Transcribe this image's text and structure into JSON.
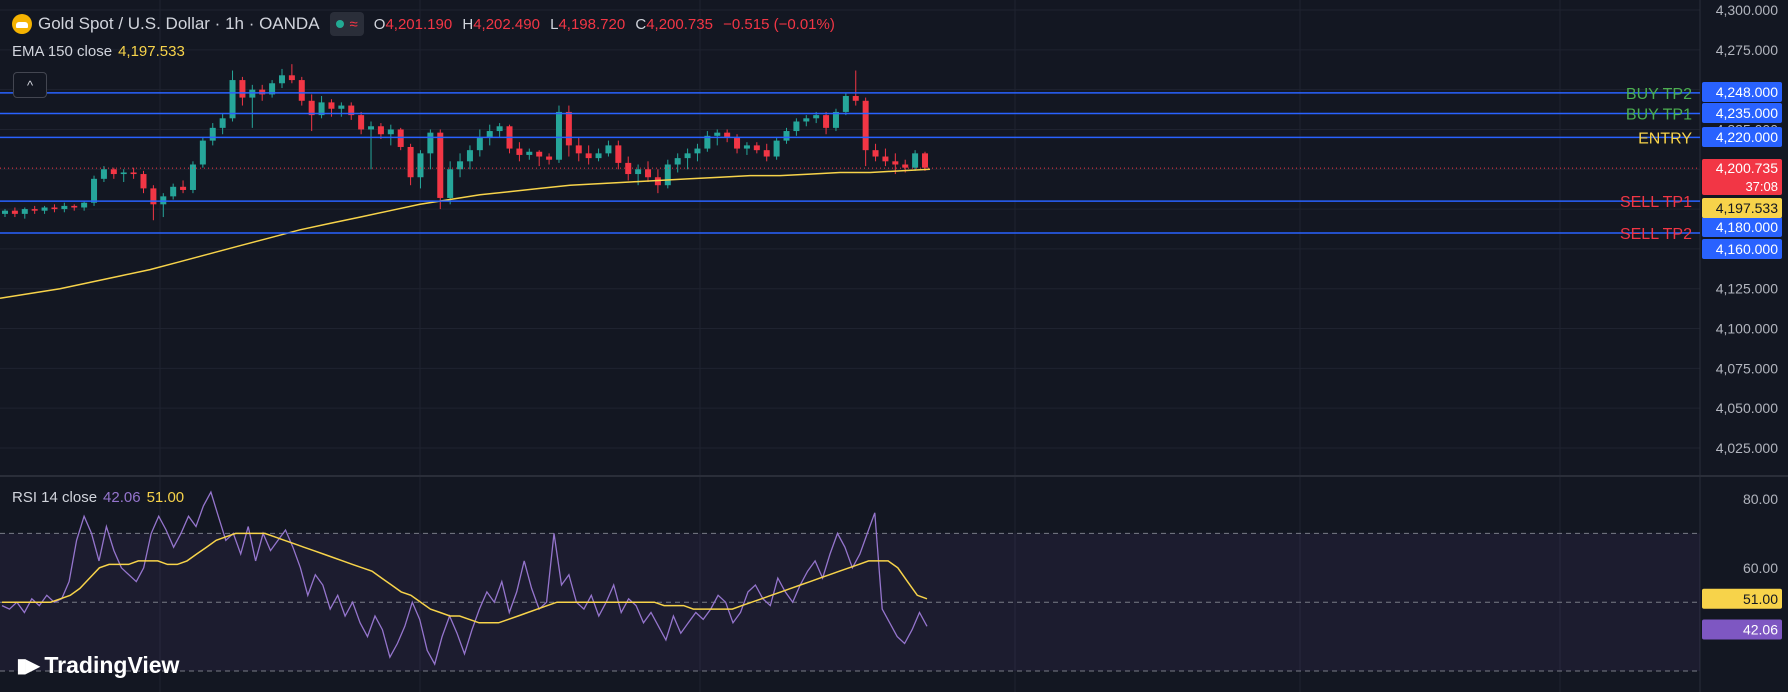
{
  "header": {
    "symbol_title": "Gold Spot / U.S. Dollar · 1h · OANDA",
    "approx_icon": "≈",
    "ohlc": {
      "o_label": "O",
      "o": "4,201.190",
      "h_label": "H",
      "h": "4,202.490",
      "l_label": "L",
      "l": "4,198.720",
      "c_label": "C",
      "c": "4,200.735",
      "change": "−0.515 (−0.01%)"
    }
  },
  "ema_legend": {
    "label": "EMA 150 close",
    "value": "4,197.533"
  },
  "collapse_icon": "^",
  "rsi_legend": {
    "label": "RSI 14 close",
    "value": "42.06",
    "ma_value": "51.00"
  },
  "branding": {
    "logo_text": "TradingView"
  },
  "colors": {
    "background": "#131722",
    "grid": "#1f2330",
    "up": "#26a69a",
    "down": "#f23645",
    "ema": "#f7d34a",
    "level_line": "#2962ff",
    "rsi": "#9575cd",
    "rsi_ma": "#f7d34a"
  },
  "chart_data": [
    {
      "type": "candlestick",
      "price_axis_ticks": [
        "4,300.000",
        "4,275.000",
        "4,250.000",
        "4,225.000",
        "4,200.000",
        "4,175.000",
        "4,150.000",
        "4,125.000",
        "4,100.000",
        "4,075.000",
        "4,050.000",
        "4,025.000"
      ],
      "ylim": [
        4015,
        4300
      ],
      "levels": [
        {
          "name": "BUY TP2",
          "price": 4248,
          "price_label": "4,248.000",
          "text_color": "#4caf50"
        },
        {
          "name": "BUY TP1",
          "price": 4235,
          "price_label": "4,235.000",
          "text_color": "#4caf50"
        },
        {
          "name": "ENTRY",
          "price": 4220,
          "price_label": "4,220.000",
          "text_color": "#f7d34a"
        },
        {
          "name": "SELL TP1",
          "price": 4180,
          "price_label": "4,180.000",
          "text_color": "#f23645"
        },
        {
          "name": "SELL TP2",
          "price": 4160,
          "price_label": "4,160.000",
          "text_color": "#f23645"
        }
      ],
      "current_price": {
        "price": 4200.735,
        "label": "4,200.735",
        "countdown": "37:08"
      },
      "ema_tag": {
        "price": 4197.533,
        "label": "4,197.533"
      },
      "ohlc": [
        [
          4172,
          4175,
          4170,
          4174
        ],
        [
          4174,
          4176,
          4170,
          4172
        ],
        [
          4172,
          4176,
          4169,
          4175
        ],
        [
          4175,
          4177,
          4172,
          4174
        ],
        [
          4174,
          4177,
          4172,
          4176
        ],
        [
          4176,
          4178,
          4173,
          4175
        ],
        [
          4175,
          4179,
          4173,
          4177
        ],
        [
          4177,
          4178,
          4174,
          4176
        ],
        [
          4176,
          4180,
          4174,
          4179
        ],
        [
          4179,
          4196,
          4177,
          4194
        ],
        [
          4194,
          4202,
          4192,
          4200
        ],
        [
          4200,
          4201,
          4194,
          4197
        ],
        [
          4197,
          4200,
          4192,
          4198
        ],
        [
          4198,
          4201,
          4194,
          4197
        ],
        [
          4197,
          4199,
          4185,
          4188
        ],
        [
          4188,
          4190,
          4168,
          4178
        ],
        [
          4178,
          4185,
          4170,
          4183
        ],
        [
          4183,
          4191,
          4181,
          4189
        ],
        [
          4189,
          4193,
          4185,
          4187
        ],
        [
          4187,
          4205,
          4185,
          4203
        ],
        [
          4203,
          4220,
          4201,
          4218
        ],
        [
          4218,
          4229,
          4215,
          4226
        ],
        [
          4226,
          4235,
          4222,
          4232
        ],
        [
          4232,
          4262,
          4230,
          4256
        ],
        [
          4256,
          4258,
          4240,
          4245
        ],
        [
          4245,
          4253,
          4226,
          4250
        ],
        [
          4250,
          4253,
          4243,
          4247
        ],
        [
          4247,
          4256,
          4245,
          4254
        ],
        [
          4254,
          4263,
          4251,
          4259
        ],
        [
          4259,
          4266,
          4254,
          4256
        ],
        [
          4256,
          4258,
          4240,
          4243
        ],
        [
          4243,
          4247,
          4224,
          4234
        ],
        [
          4234,
          4246,
          4232,
          4242
        ],
        [
          4242,
          4244,
          4233,
          4238
        ],
        [
          4238,
          4242,
          4233,
          4240
        ],
        [
          4240,
          4242,
          4231,
          4234
        ],
        [
          4234,
          4236,
          4222,
          4225
        ],
        [
          4225,
          4230,
          4200,
          4227
        ],
        [
          4227,
          4229,
          4219,
          4222
        ],
        [
          4222,
          4228,
          4215,
          4225
        ],
        [
          4225,
          4226,
          4212,
          4214
        ],
        [
          4214,
          4216,
          4190,
          4195
        ],
        [
          4195,
          4212,
          4188,
          4210
        ],
        [
          4210,
          4225,
          4200,
          4223
        ],
        [
          4223,
          4225,
          4175,
          4182
        ],
        [
          4182,
          4205,
          4178,
          4200
        ],
        [
          4200,
          4210,
          4195,
          4205
        ],
        [
          4205,
          4215,
          4200,
          4212
        ],
        [
          4212,
          4225,
          4208,
          4220
        ],
        [
          4220,
          4228,
          4215,
          4224
        ],
        [
          4224,
          4229,
          4220,
          4227
        ],
        [
          4227,
          4228,
          4210,
          4213
        ],
        [
          4213,
          4217,
          4205,
          4209
        ],
        [
          4209,
          4213,
          4206,
          4211
        ],
        [
          4211,
          4212,
          4202,
          4208
        ],
        [
          4208,
          4210,
          4203,
          4206
        ],
        [
          4206,
          4240,
          4204,
          4236
        ],
        [
          4236,
          4240,
          4208,
          4215
        ],
        [
          4215,
          4220,
          4205,
          4210
        ],
        [
          4210,
          4215,
          4203,
          4207
        ],
        [
          4207,
          4213,
          4205,
          4210
        ],
        [
          4210,
          4218,
          4208,
          4215
        ],
        [
          4215,
          4218,
          4200,
          4204
        ],
        [
          4204,
          4208,
          4193,
          4197
        ],
        [
          4197,
          4203,
          4190,
          4200
        ],
        [
          4200,
          4205,
          4192,
          4195
        ],
        [
          4195,
          4200,
          4185,
          4190
        ],
        [
          4190,
          4206,
          4188,
          4203
        ],
        [
          4203,
          4210,
          4198,
          4207
        ],
        [
          4207,
          4213,
          4200,
          4210
        ],
        [
          4210,
          4216,
          4205,
          4213
        ],
        [
          4213,
          4224,
          4211,
          4221
        ],
        [
          4221,
          4225,
          4215,
          4223
        ],
        [
          4223,
          4225,
          4217,
          4220
        ],
        [
          4220,
          4222,
          4210,
          4213
        ],
        [
          4213,
          4217,
          4209,
          4215
        ],
        [
          4215,
          4217,
          4210,
          4212
        ],
        [
          4212,
          4216,
          4205,
          4208
        ],
        [
          4208,
          4220,
          4206,
          4218
        ],
        [
          4218,
          4226,
          4216,
          4224
        ],
        [
          4224,
          4232,
          4221,
          4230
        ],
        [
          4230,
          4234,
          4227,
          4232
        ],
        [
          4232,
          4236,
          4229,
          4234
        ],
        [
          4234,
          4236,
          4222,
          4226
        ],
        [
          4226,
          4238,
          4224,
          4236
        ],
        [
          4236,
          4248,
          4234,
          4246
        ],
        [
          4246,
          4262,
          4240,
          4243
        ],
        [
          4243,
          4245,
          4202,
          4212
        ],
        [
          4212,
          4216,
          4205,
          4208
        ],
        [
          4208,
          4213,
          4202,
          4205
        ],
        [
          4205,
          4210,
          4197,
          4203
        ],
        [
          4203,
          4206,
          4198,
          4201
        ],
        [
          4201,
          4212,
          4199,
          4210
        ],
        [
          4210,
          4211,
          4199,
          4201
        ]
      ],
      "ema": [
        4119,
        4122,
        4125,
        4129,
        4133,
        4137,
        4142,
        4147,
        4152,
        4157,
        4162,
        4166,
        4170,
        4174,
        4178,
        4181,
        4184,
        4186,
        4188,
        4190,
        4191,
        4192,
        4193,
        4194,
        4195,
        4196,
        4196,
        4197,
        4198,
        4198,
        4199,
        4200
      ]
    },
    {
      "type": "line",
      "name": "RSI 14 close",
      "axis_ticks": [
        "80.00",
        "60.00"
      ],
      "ylim": [
        30,
        85
      ],
      "levels": [
        70,
        50,
        30
      ],
      "tags": [
        {
          "value": 51.0,
          "label": "51.00",
          "color": "#f7d34a"
        },
        {
          "value": 42.06,
          "label": "42.06",
          "color": "#7e57c2"
        }
      ],
      "rsi": [
        49,
        48,
        50,
        47,
        51,
        49,
        52,
        50,
        51,
        56,
        68,
        75,
        70,
        62,
        72,
        65,
        60,
        58,
        56,
        60,
        70,
        75,
        71,
        66,
        70,
        75,
        72,
        78,
        82,
        75,
        68,
        70,
        64,
        72,
        62,
        70,
        65,
        68,
        71,
        66,
        60,
        52,
        58,
        55,
        48,
        52,
        46,
        50,
        44,
        40,
        46,
        42,
        34,
        38,
        43,
        50,
        45,
        36,
        32,
        40,
        46,
        41,
        35,
        42,
        48,
        53,
        50,
        56,
        47,
        53,
        62,
        54,
        48,
        50,
        70,
        55,
        58,
        50,
        48,
        52,
        46,
        50,
        55,
        47,
        51,
        49,
        44,
        47,
        43,
        39,
        46,
        41,
        44,
        47,
        45,
        48,
        52,
        50,
        44,
        47,
        53,
        55,
        51,
        49,
        57,
        53,
        50,
        55,
        59,
        62,
        57,
        64,
        70,
        66,
        60,
        64,
        70,
        76,
        48,
        44,
        40,
        38,
        42,
        47,
        43
      ],
      "rsi_ma": [
        50,
        50,
        50,
        50,
        50,
        50,
        51,
        52,
        54,
        57,
        60,
        61,
        61,
        61,
        62,
        62,
        62,
        61,
        61,
        62,
        64,
        66,
        68,
        69,
        70,
        70,
        70,
        70,
        69,
        68,
        67,
        66,
        65,
        64,
        63,
        62,
        61,
        60,
        59,
        57,
        55,
        53,
        52,
        50,
        48,
        47,
        46,
        46,
        45,
        44,
        44,
        44,
        45,
        46,
        47,
        48,
        49,
        50,
        50,
        50,
        50,
        50,
        50,
        50,
        50,
        50,
        50,
        50,
        49,
        49,
        49,
        48,
        48,
        48,
        48,
        48,
        49,
        50,
        51,
        52,
        53,
        54,
        55,
        56,
        57,
        58,
        59,
        60,
        61,
        62,
        62,
        62,
        60,
        56,
        52,
        51
      ]
    }
  ]
}
